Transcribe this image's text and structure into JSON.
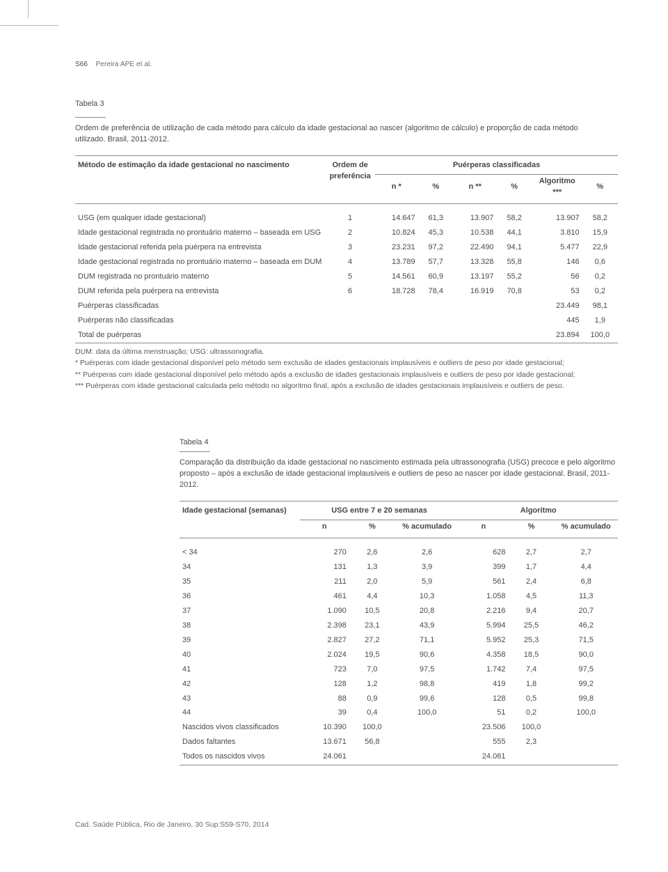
{
  "page": {
    "number_label": "S66",
    "authors": "Pereira APE et al.",
    "footer": "Cad. Saúde Pública, Rio de Janeiro, 30 Sup:S59-S70, 2014"
  },
  "colors": {
    "text": "#4a4a4a",
    "text_muted": "#6b6b6b",
    "rule": "#8a8a8a",
    "tick": "#b8b8b8",
    "background": "#ffffff"
  },
  "typography": {
    "body_fontsize_pt": 8.5,
    "header_fontsize_pt": 8.5,
    "font_family": "Helvetica/Arial sans-serif",
    "font_weight_body": 300,
    "font_weight_header": 600
  },
  "table3": {
    "type": "table",
    "label": "Tabela 3",
    "caption": "Ordem de preferência de utilização de cada método para cálculo da idade gestacional ao nascer (algoritmo de cálculo) e proporção de cada método utilizado. Brasil, 2011-2012.",
    "header_group_left": "Método de estimação da idade gestacional no nascimento",
    "header_group_ordem": "Ordem de preferência",
    "header_group_right": "Puérperas classificadas",
    "sub_headers": [
      "n *",
      "%",
      "n **",
      "%",
      "Algoritmo ***",
      "%"
    ],
    "column_align": [
      "left",
      "center",
      "right",
      "center",
      "right",
      "center",
      "right",
      "center"
    ],
    "rows": [
      {
        "metodo": "USG (em qualquer idade gestacional)",
        "ordem": "1",
        "n1": "14.647",
        "p1": "61,3",
        "n2": "13.907",
        "p2": "58,2",
        "alg": "13.907",
        "palg": "58,2"
      },
      {
        "metodo": "Idade gestacional registrada no prontuário materno – baseada em USG",
        "ordem": "2",
        "n1": "10.824",
        "p1": "45,3",
        "n2": "10.538",
        "p2": "44,1",
        "alg": "3.810",
        "palg": "15,9"
      },
      {
        "metodo": "Idade gestacional referida pela puérpera na entrevista",
        "ordem": "3",
        "n1": "23.231",
        "p1": "97,2",
        "n2": "22.490",
        "p2": "94,1",
        "alg": "5.477",
        "palg": "22,9"
      },
      {
        "metodo": "Idade gestacional registrada no prontuário materno – baseada em DUM",
        "ordem": "4",
        "n1": "13.789",
        "p1": "57,7",
        "n2": "13.328",
        "p2": "55,8",
        "alg": "146",
        "palg": "0,6"
      },
      {
        "metodo": "DUM registrada no prontuário materno",
        "ordem": "5",
        "n1": "14.561",
        "p1": "60,9",
        "n2": "13.197",
        "p2": "55,2",
        "alg": "56",
        "palg": "0,2"
      },
      {
        "metodo": "DUM referida pela puérpera na entrevista",
        "ordem": "6",
        "n1": "18.728",
        "p1": "78,4",
        "n2": "16.919",
        "p2": "70,8",
        "alg": "53",
        "palg": "0,2"
      },
      {
        "metodo": "Puérperas classificadas",
        "ordem": "",
        "n1": "",
        "p1": "",
        "n2": "",
        "p2": "",
        "alg": "23.449",
        "palg": "98,1"
      },
      {
        "metodo": "Puérperas não classificadas",
        "ordem": "",
        "n1": "",
        "p1": "",
        "n2": "",
        "p2": "",
        "alg": "445",
        "palg": "1,9"
      },
      {
        "metodo": "Total de puérperas",
        "ordem": "",
        "n1": "",
        "p1": "",
        "n2": "",
        "p2": "",
        "alg": "23.894",
        "palg": "100,0"
      }
    ],
    "footnote_defs": "DUM: data da última menstruação; USG: ultrassonografia.",
    "footnote_star1": "* Puérperas com idade gestacional disponível pelo método sem exclusão de idades gestacionais implausíveis e outliers de peso por idade gestacional;",
    "footnote_star2": "** Puérperas com idade gestacional disponível pelo método após a exclusão de idades gestacionais implausíveis e outliers de peso por idade gestacional;",
    "footnote_star3": "*** Puérperas com idade gestacional calculada pelo método no algoritmo final, após a exclusão de idades gestacionais implausíveis e outliers de peso."
  },
  "table4": {
    "type": "table",
    "label": "Tabela 4",
    "caption": "Comparação da distribuição da idade gestacional no nascimento estimada pela ultrassonografia (USG) precoce e pelo algoritmo proposto – após a exclusão de idade gestacional implausíveis e outliers de peso ao nascer por idade gestacional. Brasil, 2011-2012.",
    "header_left": "Idade gestacional (semanas)",
    "header_usg": "USG entre 7 e 20 semanas",
    "header_alg": "Algoritmo",
    "sub_headers": [
      "n",
      "%",
      "% acumulado",
      "n",
      "%",
      "% acumulado"
    ],
    "column_align": [
      "left",
      "right",
      "center",
      "center",
      "right",
      "center",
      "center"
    ],
    "rows": [
      {
        "sem": "< 34",
        "un": "270",
        "up": "2,6",
        "uc": "2,6",
        "an": "628",
        "ap": "2,7",
        "ac": "2,7"
      },
      {
        "sem": "34",
        "un": "131",
        "up": "1,3",
        "uc": "3,9",
        "an": "399",
        "ap": "1,7",
        "ac": "4,4"
      },
      {
        "sem": "35",
        "un": "211",
        "up": "2,0",
        "uc": "5,9",
        "an": "561",
        "ap": "2,4",
        "ac": "6,8"
      },
      {
        "sem": "36",
        "un": "461",
        "up": "4,4",
        "uc": "10,3",
        "an": "1.058",
        "ap": "4,5",
        "ac": "11,3"
      },
      {
        "sem": "37",
        "un": "1.090",
        "up": "10,5",
        "uc": "20,8",
        "an": "2.216",
        "ap": "9,4",
        "ac": "20,7"
      },
      {
        "sem": "38",
        "un": "2.398",
        "up": "23,1",
        "uc": "43,9",
        "an": "5.994",
        "ap": "25,5",
        "ac": "46,2"
      },
      {
        "sem": "39",
        "un": "2.827",
        "up": "27,2",
        "uc": "71,1",
        "an": "5.952",
        "ap": "25,3",
        "ac": "71,5"
      },
      {
        "sem": "40",
        "un": "2.024",
        "up": "19,5",
        "uc": "90,6",
        "an": "4.358",
        "ap": "18,5",
        "ac": "90,0"
      },
      {
        "sem": "41",
        "un": "723",
        "up": "7,0",
        "uc": "97,5",
        "an": "1.742",
        "ap": "7,4",
        "ac": "97,5"
      },
      {
        "sem": "42",
        "un": "128",
        "up": "1,2",
        "uc": "98,8",
        "an": "419",
        "ap": "1,8",
        "ac": "99,2"
      },
      {
        "sem": "43",
        "un": "88",
        "up": "0,9",
        "uc": "99,6",
        "an": "128",
        "ap": "0,5",
        "ac": "99,8"
      },
      {
        "sem": "44",
        "un": "39",
        "up": "0,4",
        "uc": "100,0",
        "an": "51",
        "ap": "0,2",
        "ac": "100,0"
      },
      {
        "sem": "Nascidos vivos classificados",
        "un": "10.390",
        "up": "100,0",
        "uc": "",
        "an": "23.506",
        "ap": "100,0",
        "ac": ""
      },
      {
        "sem": "Dados faltantes",
        "un": "13.671",
        "up": "56,8",
        "uc": "",
        "an": "555",
        "ap": "2,3",
        "ac": ""
      },
      {
        "sem": "Todos os nascidos vivos",
        "un": "24.061",
        "up": "",
        "uc": "",
        "an": "24.061",
        "ap": "",
        "ac": ""
      }
    ]
  }
}
